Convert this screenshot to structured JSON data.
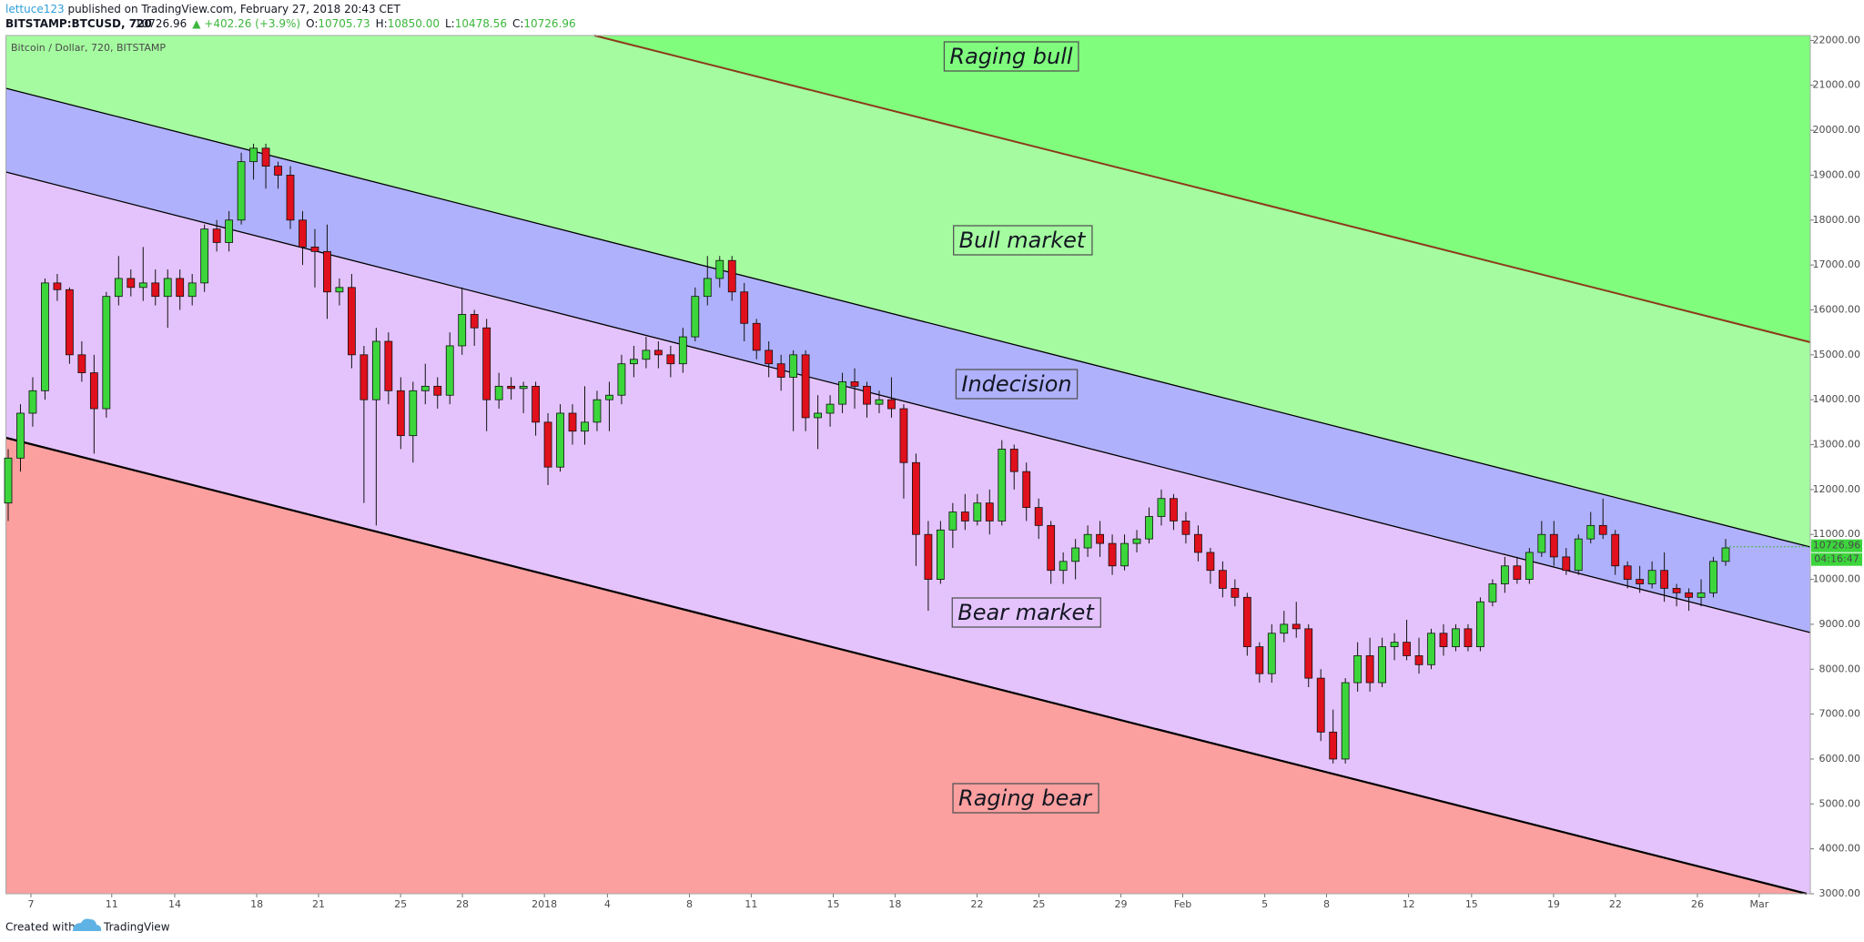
{
  "header": {
    "author": "lettuce123",
    "published": "published on TradingView.com, February 27, 2018 20:43 CET",
    "symbol": "BITSTAMP:BTCUSD, 720",
    "last": "10726.96",
    "change": "▲ +402.26 (+3.9%)",
    "stats": [
      {
        "label": "O:",
        "value": "10705.73"
      },
      {
        "label": "H:",
        "value": "10850.00"
      },
      {
        "label": "L:",
        "value": "10478.56"
      },
      {
        "label": "C:",
        "value": "10726.96"
      }
    ]
  },
  "footer": {
    "created": "Created with",
    "brand": "TradingView"
  },
  "chart_data": {
    "type": "candlestick",
    "title": "Bitcoin / Dollar, 720, BITSTAMP",
    "zones": [
      "Raging bull",
      "Bull market",
      "Indecision",
      "Bear market",
      "Raging bear"
    ],
    "x_labels": [
      "7",
      "11",
      "14",
      "18",
      "21",
      "25",
      "28",
      "2018",
      "4",
      "8",
      "11",
      "15",
      "18",
      "22",
      "25",
      "29",
      "Feb",
      "5",
      "8",
      "12",
      "15",
      "19",
      "22",
      "26",
      "Mar"
    ],
    "ylim": [
      3000,
      22000
    ],
    "yticks": [
      {
        "value": 3000,
        "label": "3000.00"
      },
      {
        "value": 4000,
        "label": "4000.00"
      },
      {
        "value": 5000,
        "label": "5000.00"
      },
      {
        "value": 6000,
        "label": "6000.00"
      },
      {
        "value": 7000,
        "label": "7000.00"
      },
      {
        "value": 8000,
        "label": "8000.00"
      },
      {
        "value": 9000,
        "label": "9000.00"
      },
      {
        "value": 10000,
        "label": "10000.00"
      },
      {
        "value": 11000,
        "label": "11000.00"
      },
      {
        "value": 12000,
        "label": "12000.00"
      },
      {
        "value": 13000,
        "label": "13000.00"
      },
      {
        "value": 14000,
        "label": "14000.00"
      },
      {
        "value": 15000,
        "label": "15000.00"
      },
      {
        "value": 16000,
        "label": "16000.00"
      },
      {
        "value": 17000,
        "label": "17000.00"
      },
      {
        "value": 18000,
        "label": "18000.00"
      },
      {
        "value": 19000,
        "label": "19000.00"
      },
      {
        "value": 20000,
        "label": "20000.00"
      },
      {
        "value": 21000,
        "label": "21000.00"
      },
      {
        "value": 22000,
        "label": "22000.00"
      }
    ],
    "last_price": 10726.96,
    "countdown": "04:16:47",
    "up_color": "#3cd63c",
    "down_color": "#e0101c",
    "ohlc": [
      [
        11700,
        12900,
        11300,
        12700
      ],
      [
        12700,
        13900,
        12400,
        13700
      ],
      [
        13700,
        14500,
        13400,
        14200
      ],
      [
        14200,
        16700,
        14000,
        16600
      ],
      [
        16600,
        16800,
        16200,
        16450
      ],
      [
        16450,
        16500,
        14800,
        15000
      ],
      [
        15000,
        15300,
        14400,
        14600
      ],
      [
        14600,
        15000,
        12800,
        13800
      ],
      [
        13800,
        16400,
        13600,
        16300
      ],
      [
        16300,
        17200,
        16100,
        16700
      ],
      [
        16700,
        16900,
        16300,
        16500
      ],
      [
        16500,
        17400,
        16200,
        16600
      ],
      [
        16600,
        16900,
        16100,
        16300
      ],
      [
        16300,
        16900,
        15600,
        16700
      ],
      [
        16700,
        16900,
        16000,
        16300
      ],
      [
        16300,
        16800,
        16100,
        16600
      ],
      [
        16600,
        17900,
        16400,
        17800
      ],
      [
        17800,
        18000,
        17300,
        17500
      ],
      [
        17500,
        18200,
        17300,
        18000
      ],
      [
        18000,
        19500,
        17900,
        19300
      ],
      [
        19300,
        19700,
        18900,
        19600
      ],
      [
        19600,
        19700,
        18700,
        19200
      ],
      [
        19200,
        19300,
        18700,
        19000
      ],
      [
        19000,
        19200,
        17800,
        18000
      ],
      [
        18000,
        18200,
        17000,
        17400
      ],
      [
        17400,
        17800,
        16500,
        17300
      ],
      [
        17300,
        17900,
        15800,
        16400
      ],
      [
        16400,
        16700,
        16100,
        16500
      ],
      [
        16500,
        16800,
        14700,
        15000
      ],
      [
        15000,
        15200,
        11700,
        14000
      ],
      [
        14000,
        15600,
        11200,
        15300
      ],
      [
        15300,
        15500,
        13900,
        14200
      ],
      [
        14200,
        14500,
        12900,
        13200
      ],
      [
        13200,
        14400,
        12600,
        14200
      ],
      [
        14200,
        14800,
        13900,
        14300
      ],
      [
        14300,
        14500,
        13800,
        14100
      ],
      [
        14100,
        15500,
        13900,
        15200
      ],
      [
        15200,
        16500,
        15000,
        15900
      ],
      [
        15900,
        16000,
        15200,
        15600
      ],
      [
        15600,
        15800,
        13300,
        14000
      ],
      [
        14000,
        14600,
        13800,
        14300
      ],
      [
        14300,
        14500,
        14000,
        14250
      ],
      [
        14250,
        14400,
        13700,
        14300
      ],
      [
        14300,
        14400,
        13200,
        13500
      ],
      [
        13500,
        13700,
        12100,
        12500
      ],
      [
        12500,
        13900,
        12400,
        13700
      ],
      [
        13700,
        13900,
        13000,
        13300
      ],
      [
        13300,
        14300,
        13000,
        13500
      ],
      [
        13500,
        14200,
        13300,
        14000
      ],
      [
        14000,
        14400,
        13300,
        14100
      ],
      [
        14100,
        15000,
        13900,
        14800
      ],
      [
        14800,
        15200,
        14500,
        14900
      ],
      [
        14900,
        15400,
        14700,
        15100
      ],
      [
        15100,
        15300,
        14700,
        15000
      ],
      [
        15000,
        15200,
        14500,
        14800
      ],
      [
        14800,
        15600,
        14600,
        15400
      ],
      [
        15400,
        16500,
        15300,
        16300
      ],
      [
        16300,
        17200,
        16100,
        16700
      ],
      [
        16700,
        17200,
        16500,
        17100
      ],
      [
        17100,
        17200,
        16200,
        16400
      ],
      [
        16400,
        16600,
        15300,
        15700
      ],
      [
        15700,
        15800,
        14900,
        15100
      ],
      [
        15100,
        15300,
        14500,
        14800
      ],
      [
        14800,
        15000,
        14200,
        14500
      ],
      [
        14500,
        15100,
        13300,
        15000
      ],
      [
        15000,
        15100,
        13300,
        13600
      ],
      [
        13600,
        14100,
        12900,
        13700
      ],
      [
        13700,
        14100,
        13400,
        13900
      ],
      [
        13900,
        14600,
        13700,
        14400
      ],
      [
        14400,
        14700,
        13800,
        14300
      ],
      [
        14300,
        14400,
        13600,
        13900
      ],
      [
        13900,
        14200,
        13700,
        14000
      ],
      [
        14000,
        14500,
        13600,
        13800
      ],
      [
        13800,
        13900,
        11800,
        12600
      ],
      [
        12600,
        12800,
        10300,
        11000
      ],
      [
        11000,
        11300,
        9300,
        10000
      ],
      [
        10000,
        11300,
        9900,
        11100
      ],
      [
        11100,
        11700,
        10700,
        11500
      ],
      [
        11500,
        11900,
        11100,
        11300
      ],
      [
        11300,
        11900,
        11200,
        11700
      ],
      [
        11700,
        12000,
        11000,
        11300
      ],
      [
        11300,
        13100,
        11200,
        12900
      ],
      [
        12900,
        13000,
        12000,
        12400
      ],
      [
        12400,
        12600,
        11300,
        11600
      ],
      [
        11600,
        11800,
        10900,
        11200
      ],
      [
        11200,
        11300,
        9900,
        10200
      ],
      [
        10200,
        10600,
        9900,
        10400
      ],
      [
        10400,
        10900,
        10000,
        10700
      ],
      [
        10700,
        11200,
        10500,
        11000
      ],
      [
        11000,
        11300,
        10500,
        10800
      ],
      [
        10800,
        11000,
        10100,
        10300
      ],
      [
        10300,
        11000,
        10200,
        10800
      ],
      [
        10800,
        11100,
        10600,
        10900
      ],
      [
        10900,
        11600,
        10800,
        11400
      ],
      [
        11400,
        12000,
        11200,
        11800
      ],
      [
        11800,
        11900,
        11100,
        11300
      ],
      [
        11300,
        11500,
        10800,
        11000
      ],
      [
        11000,
        11200,
        10400,
        10600
      ],
      [
        10600,
        10700,
        9900,
        10200
      ],
      [
        10200,
        10400,
        9600,
        9800
      ],
      [
        9800,
        10000,
        9400,
        9600
      ],
      [
        9600,
        9700,
        8300,
        8500
      ],
      [
        8500,
        8600,
        7700,
        7900
      ],
      [
        7900,
        9000,
        7700,
        8800
      ],
      [
        8800,
        9300,
        8600,
        9000
      ],
      [
        9000,
        9500,
        8700,
        8900
      ],
      [
        8900,
        9000,
        7600,
        7800
      ],
      [
        7800,
        8000,
        6400,
        6600
      ],
      [
        6600,
        7100,
        5900,
        6000
      ],
      [
        6000,
        7800,
        5900,
        7700
      ],
      [
        7700,
        8600,
        7500,
        8300
      ],
      [
        8300,
        8700,
        7500,
        7700
      ],
      [
        7700,
        8700,
        7600,
        8500
      ],
      [
        8500,
        8800,
        8200,
        8600
      ],
      [
        8600,
        9100,
        8200,
        8300
      ],
      [
        8300,
        8700,
        7900,
        8100
      ],
      [
        8100,
        8900,
        8000,
        8800
      ],
      [
        8800,
        9000,
        8300,
        8500
      ],
      [
        8500,
        9000,
        8400,
        8900
      ],
      [
        8900,
        9000,
        8400,
        8500
      ],
      [
        8500,
        9600,
        8400,
        9500
      ],
      [
        9500,
        10000,
        9400,
        9900
      ],
      [
        9900,
        10500,
        9700,
        10300
      ],
      [
        10300,
        10500,
        9900,
        10000
      ],
      [
        10000,
        10700,
        9900,
        10600
      ],
      [
        10600,
        11300,
        10500,
        11000
      ],
      [
        11000,
        11300,
        10300,
        10500
      ],
      [
        10500,
        10700,
        10100,
        10200
      ],
      [
        10200,
        11000,
        10100,
        10900
      ],
      [
        10900,
        11500,
        10800,
        11200
      ],
      [
        11200,
        11800,
        10900,
        11000
      ],
      [
        11000,
        11100,
        10100,
        10300
      ],
      [
        10300,
        10400,
        9800,
        10000
      ],
      [
        10000,
        10300,
        9700,
        9900
      ],
      [
        9900,
        10400,
        9800,
        10200
      ],
      [
        10200,
        10600,
        9500,
        9800
      ],
      [
        9800,
        9900,
        9400,
        9700
      ],
      [
        9700,
        9800,
        9300,
        9600
      ],
      [
        9600,
        10000,
        9400,
        9700
      ],
      [
        9700,
        10500,
        9600,
        10400
      ],
      [
        10400,
        10900,
        10300,
        10700
      ]
    ]
  }
}
